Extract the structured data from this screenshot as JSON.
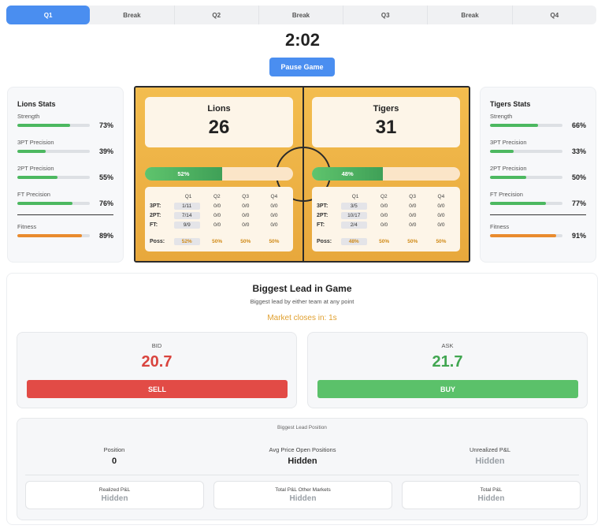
{
  "nav": {
    "tabs": [
      {
        "label": "Q1",
        "active": true
      },
      {
        "label": "Break",
        "active": false
      },
      {
        "label": "Q2",
        "active": false
      },
      {
        "label": "Break",
        "active": false
      },
      {
        "label": "Q3",
        "active": false
      },
      {
        "label": "Break",
        "active": false
      },
      {
        "label": "Q4",
        "active": false
      }
    ]
  },
  "clock": "2:02",
  "pause_label": "Pause Game",
  "colors": {
    "accent": "#4a8ef0",
    "court": "#efb64a",
    "bid": "#d9443e",
    "ask": "#41a651",
    "closing": "#e0a030"
  },
  "lions_stats": {
    "title": "Lions Stats",
    "stats": [
      {
        "label": "Strength",
        "value": "73%",
        "level": 0.73
      },
      {
        "label": "3PT Precision",
        "value": "39%",
        "level": 0.39
      },
      {
        "label": "2PT Precision",
        "value": "55%",
        "level": 0.55
      },
      {
        "label": "FT Precision",
        "value": "76%",
        "level": 0.76
      }
    ],
    "fitness": {
      "label": "Fitness",
      "value": "89%",
      "level": 0.89
    }
  },
  "tigers_stats": {
    "title": "Tigers Stats",
    "stats": [
      {
        "label": "Strength",
        "value": "66%",
        "level": 0.66
      },
      {
        "label": "3PT Precision",
        "value": "33%",
        "level": 0.33
      },
      {
        "label": "2PT Precision",
        "value": "50%",
        "level": 0.5
      },
      {
        "label": "FT Precision",
        "value": "77%",
        "level": 0.77
      }
    ],
    "fitness": {
      "label": "Fitness",
      "value": "91%",
      "level": 0.91
    }
  },
  "court": {
    "lions": {
      "name": "Lions",
      "score": "26",
      "possession": "52%",
      "possession_level": 0.52,
      "table": {
        "headers": [
          "Q1",
          "Q2",
          "Q3",
          "Q4"
        ],
        "rows": [
          {
            "label": "3PT:",
            "cells": [
              "1/11",
              "0/0",
              "0/0",
              "0/0"
            ]
          },
          {
            "label": "2PT:",
            "cells": [
              "7/14",
              "0/0",
              "0/0",
              "0/0"
            ]
          },
          {
            "label": "FT:",
            "cells": [
              "9/9",
              "0/0",
              "0/0",
              "0/0"
            ]
          }
        ],
        "poss": {
          "label": "Poss:",
          "cells": [
            "52%",
            "50%",
            "50%",
            "50%"
          ]
        }
      }
    },
    "tigers": {
      "name": "Tigers",
      "score": "31",
      "possession": "48%",
      "possession_level": 0.48,
      "table": {
        "headers": [
          "Q1",
          "Q2",
          "Q3",
          "Q4"
        ],
        "rows": [
          {
            "label": "3PT:",
            "cells": [
              "3/5",
              "0/0",
              "0/0",
              "0/0"
            ]
          },
          {
            "label": "2PT:",
            "cells": [
              "10/17",
              "0/0",
              "0/0",
              "0/0"
            ]
          },
          {
            "label": "FT:",
            "cells": [
              "2/4",
              "0/0",
              "0/0",
              "0/0"
            ]
          }
        ],
        "poss": {
          "label": "Poss:",
          "cells": [
            "48%",
            "50%",
            "50%",
            "50%"
          ]
        }
      }
    }
  },
  "market": {
    "title": "Biggest Lead in Game",
    "subtitle": "Biggest lead by either team at any point",
    "closes": "Market closes in: 1s",
    "bid": {
      "label": "BID",
      "value": "20.7",
      "button": "SELL"
    },
    "ask": {
      "label": "ASK",
      "value": "21.7",
      "button": "BUY"
    },
    "position": {
      "title": "Biggest Lead Position",
      "position_label": "Position",
      "position_value": "0",
      "avg_label": "Avg Price Open Positions",
      "avg_value": "Hidden",
      "unrealized_label": "Unrealized P&L",
      "unrealized_value": "Hidden",
      "realized_label": "Realized P&L",
      "realized_value": "Hidden",
      "other_label": "Total P&L Other Markets",
      "other_value": "Hidden",
      "total_label": "Total P&L",
      "total_value": "Hidden"
    }
  }
}
